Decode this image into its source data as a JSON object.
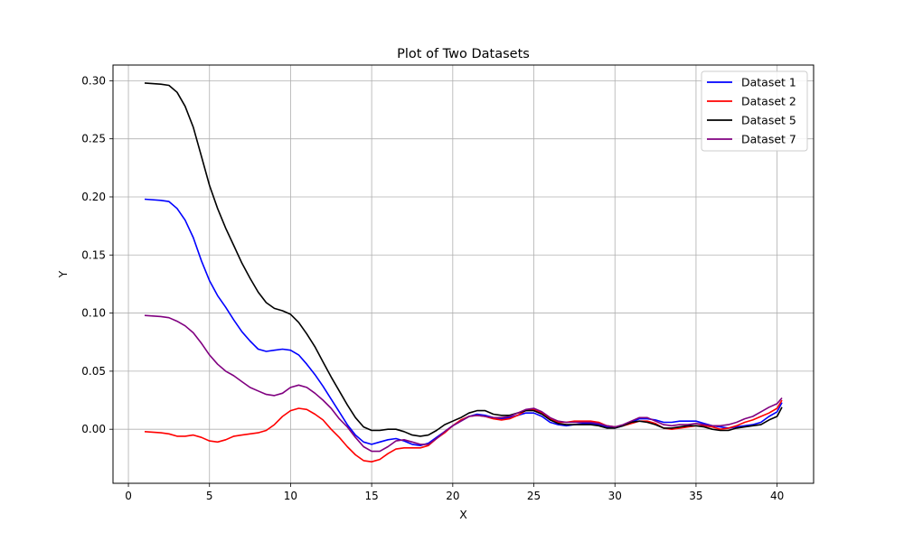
{
  "chart_data": {
    "type": "line",
    "title": "Plot of Two Datasets",
    "xlabel": "X",
    "ylabel": "Y",
    "xlim": [
      -0.95,
      42.25
    ],
    "ylim": [
      -0.0465,
      0.3135
    ],
    "xticks": [
      0,
      5,
      10,
      15,
      20,
      25,
      30,
      35,
      40
    ],
    "yticks": [
      0.0,
      0.05,
      0.1,
      0.15,
      0.2,
      0.25,
      0.3
    ],
    "xtick_labels": [
      "0",
      "5",
      "10",
      "15",
      "20",
      "25",
      "30",
      "35",
      "40"
    ],
    "ytick_labels": [
      "0.00",
      "0.05",
      "0.10",
      "0.15",
      "0.20",
      "0.25",
      "0.30"
    ],
    "grid": true,
    "legend_position": "top-right",
    "series": [
      {
        "name": "Dataset 1",
        "color": "#0000ff",
        "x": [
          1,
          2,
          2.5,
          3,
          3.5,
          4,
          4.5,
          5,
          5.5,
          6,
          6.5,
          7,
          7.5,
          8,
          8.5,
          9,
          9.5,
          10,
          10.5,
          11,
          11.5,
          12,
          12.5,
          13,
          13.5,
          14,
          14.5,
          15,
          15.5,
          16,
          16.5,
          17,
          17.5,
          18,
          18.5,
          19,
          19.5,
          20,
          20.5,
          21,
          21.5,
          22,
          22.5,
          23,
          23.5,
          24,
          24.5,
          25,
          25.5,
          26,
          26.5,
          27,
          27.5,
          28,
          28.5,
          29,
          29.5,
          30,
          30.5,
          31,
          31.5,
          32,
          32.5,
          33,
          33.5,
          34,
          34.5,
          35,
          35.5,
          36,
          36.5,
          37,
          37.5,
          38,
          38.5,
          39,
          39.5,
          40,
          40.3
        ],
        "y": [
          0.198,
          0.197,
          0.196,
          0.19,
          0.18,
          0.165,
          0.145,
          0.128,
          0.115,
          0.105,
          0.094,
          0.084,
          0.076,
          0.069,
          0.067,
          0.068,
          0.069,
          0.068,
          0.064,
          0.056,
          0.047,
          0.037,
          0.026,
          0.015,
          0.004,
          -0.005,
          -0.011,
          -0.013,
          -0.011,
          -0.009,
          -0.008,
          -0.01,
          -0.013,
          -0.014,
          -0.012,
          -0.007,
          -0.002,
          0.003,
          0.007,
          0.011,
          0.013,
          0.012,
          0.01,
          0.009,
          0.01,
          0.012,
          0.014,
          0.014,
          0.011,
          0.006,
          0.004,
          0.003,
          0.004,
          0.005,
          0.005,
          0.004,
          0.002,
          0.001,
          0.003,
          0.006,
          0.009,
          0.009,
          0.008,
          0.006,
          0.006,
          0.007,
          0.007,
          0.007,
          0.005,
          0.003,
          0.002,
          0.001,
          0.002,
          0.003,
          0.004,
          0.006,
          0.011,
          0.015,
          0.023
        ]
      },
      {
        "name": "Dataset 2",
        "color": "#ff0000",
        "x": [
          1,
          2,
          2.5,
          3,
          3.5,
          4,
          4.5,
          5,
          5.5,
          6,
          6.5,
          7,
          7.5,
          8,
          8.5,
          9,
          9.5,
          10,
          10.5,
          11,
          11.5,
          12,
          12.5,
          13,
          13.5,
          14,
          14.5,
          15,
          15.5,
          16,
          16.5,
          17,
          17.5,
          18,
          18.5,
          19,
          19.5,
          20,
          20.5,
          21,
          21.5,
          22,
          22.5,
          23,
          23.5,
          24,
          24.5,
          25,
          25.5,
          26,
          26.5,
          27,
          27.5,
          28,
          28.5,
          29,
          29.5,
          30,
          30.5,
          31,
          31.5,
          32,
          32.5,
          33,
          33.5,
          34,
          34.5,
          35,
          35.5,
          36,
          36.5,
          37,
          37.5,
          38,
          38.5,
          39,
          39.5,
          40,
          40.3
        ],
        "y": [
          -0.002,
          -0.003,
          -0.004,
          -0.006,
          -0.006,
          -0.005,
          -0.007,
          -0.01,
          -0.011,
          -0.009,
          -0.006,
          -0.005,
          -0.004,
          -0.003,
          -0.001,
          0.004,
          0.011,
          0.016,
          0.018,
          0.017,
          0.013,
          0.008,
          0.0,
          -0.007,
          -0.015,
          -0.022,
          -0.027,
          -0.028,
          -0.026,
          -0.021,
          -0.017,
          -0.016,
          -0.016,
          -0.016,
          -0.014,
          -0.008,
          -0.003,
          0.003,
          0.008,
          0.011,
          0.012,
          0.011,
          0.009,
          0.008,
          0.009,
          0.012,
          0.016,
          0.017,
          0.014,
          0.009,
          0.006,
          0.006,
          0.007,
          0.007,
          0.007,
          0.006,
          0.003,
          0.002,
          0.003,
          0.005,
          0.007,
          0.007,
          0.005,
          0.001,
          0.0,
          0.001,
          0.002,
          0.003,
          0.003,
          0.002,
          0.0,
          0.001,
          0.003,
          0.006,
          0.008,
          0.011,
          0.014,
          0.018,
          0.025
        ]
      },
      {
        "name": "Dataset 5",
        "color": "#000000",
        "x": [
          1,
          2,
          2.5,
          3,
          3.5,
          4,
          4.5,
          5,
          5.5,
          6,
          6.5,
          7,
          7.5,
          8,
          8.5,
          9,
          9.5,
          10,
          10.5,
          11,
          11.5,
          12,
          12.5,
          13,
          13.5,
          14,
          14.5,
          15,
          15.5,
          16,
          16.5,
          17,
          17.5,
          18,
          18.5,
          19,
          19.5,
          20,
          20.5,
          21,
          21.5,
          22,
          22.5,
          23,
          23.5,
          24,
          24.5,
          25,
          25.5,
          26,
          26.5,
          27,
          27.5,
          28,
          28.5,
          29,
          29.5,
          30,
          30.5,
          31,
          31.5,
          32,
          32.5,
          33,
          33.5,
          34,
          34.5,
          35,
          35.5,
          36,
          36.5,
          37,
          37.5,
          38,
          38.5,
          39,
          39.5,
          40,
          40.3
        ],
        "y": [
          0.298,
          0.297,
          0.296,
          0.29,
          0.278,
          0.26,
          0.235,
          0.21,
          0.19,
          0.173,
          0.158,
          0.143,
          0.13,
          0.118,
          0.109,
          0.104,
          0.102,
          0.099,
          0.092,
          0.082,
          0.071,
          0.058,
          0.045,
          0.033,
          0.021,
          0.01,
          0.002,
          -0.001,
          -0.001,
          0.0,
          0.0,
          -0.002,
          -0.005,
          -0.006,
          -0.005,
          -0.001,
          0.004,
          0.007,
          0.01,
          0.014,
          0.016,
          0.016,
          0.013,
          0.012,
          0.012,
          0.014,
          0.016,
          0.016,
          0.013,
          0.008,
          0.005,
          0.004,
          0.004,
          0.004,
          0.004,
          0.003,
          0.001,
          0.001,
          0.003,
          0.006,
          0.007,
          0.006,
          0.004,
          0.001,
          0.001,
          0.002,
          0.003,
          0.003,
          0.002,
          0.0,
          -0.001,
          -0.001,
          0.001,
          0.002,
          0.003,
          0.004,
          0.008,
          0.011,
          0.019
        ]
      },
      {
        "name": "Dataset 7",
        "color": "#800080",
        "x": [
          1,
          2,
          2.5,
          3,
          3.5,
          4,
          4.5,
          5,
          5.5,
          6,
          6.5,
          7,
          7.5,
          8,
          8.5,
          9,
          9.5,
          10,
          10.5,
          11,
          11.5,
          12,
          12.5,
          13,
          13.5,
          14,
          14.5,
          15,
          15.5,
          16,
          16.5,
          17,
          17.5,
          18,
          18.5,
          19,
          19.5,
          20,
          20.5,
          21,
          21.5,
          22,
          22.5,
          23,
          23.5,
          24,
          24.5,
          25,
          25.5,
          26,
          26.5,
          27,
          27.5,
          28,
          28.5,
          29,
          29.5,
          30,
          30.5,
          31,
          31.5,
          32,
          32.5,
          33,
          33.5,
          34,
          34.5,
          35,
          35.5,
          36,
          36.5,
          37,
          37.5,
          38,
          38.5,
          39,
          39.5,
          40,
          40.3
        ],
        "y": [
          0.098,
          0.097,
          0.096,
          0.093,
          0.089,
          0.083,
          0.074,
          0.064,
          0.056,
          0.05,
          0.046,
          0.041,
          0.036,
          0.033,
          0.03,
          0.029,
          0.031,
          0.036,
          0.038,
          0.036,
          0.031,
          0.025,
          0.018,
          0.009,
          0.002,
          -0.007,
          -0.015,
          -0.019,
          -0.019,
          -0.015,
          -0.01,
          -0.009,
          -0.011,
          -0.013,
          -0.013,
          -0.008,
          -0.002,
          0.003,
          0.007,
          0.011,
          0.012,
          0.011,
          0.01,
          0.01,
          0.011,
          0.014,
          0.017,
          0.018,
          0.015,
          0.01,
          0.007,
          0.006,
          0.006,
          0.006,
          0.006,
          0.005,
          0.003,
          0.002,
          0.004,
          0.007,
          0.01,
          0.01,
          0.007,
          0.004,
          0.003,
          0.004,
          0.004,
          0.005,
          0.004,
          0.003,
          0.003,
          0.004,
          0.006,
          0.009,
          0.011,
          0.015,
          0.019,
          0.022,
          0.027
        ]
      }
    ]
  }
}
